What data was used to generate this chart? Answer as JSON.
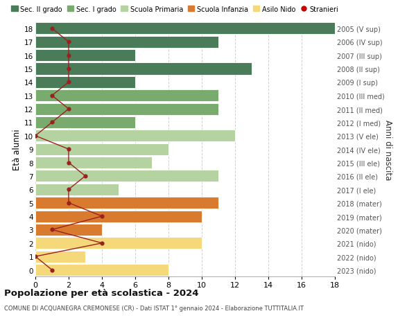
{
  "ages": [
    18,
    17,
    16,
    15,
    14,
    13,
    12,
    11,
    10,
    9,
    8,
    7,
    6,
    5,
    4,
    3,
    2,
    1,
    0
  ],
  "years": [
    "2005 (V sup)",
    "2006 (IV sup)",
    "2007 (III sup)",
    "2008 (II sup)",
    "2009 (I sup)",
    "2010 (III med)",
    "2011 (II med)",
    "2012 (I med)",
    "2013 (V ele)",
    "2014 (IV ele)",
    "2015 (III ele)",
    "2016 (II ele)",
    "2017 (I ele)",
    "2018 (mater)",
    "2019 (mater)",
    "2020 (mater)",
    "2021 (nido)",
    "2022 (nido)",
    "2023 (nido)"
  ],
  "bar_values": [
    18,
    11,
    6,
    13,
    6,
    11,
    11,
    6,
    12,
    8,
    7,
    11,
    5,
    11,
    10,
    4,
    10,
    3,
    8
  ],
  "bar_colors": [
    "#4a7c59",
    "#4a7c59",
    "#4a7c59",
    "#4a7c59",
    "#4a7c59",
    "#7aab6e",
    "#7aab6e",
    "#7aab6e",
    "#b5d3a0",
    "#b5d3a0",
    "#b5d3a0",
    "#b5d3a0",
    "#b5d3a0",
    "#d97b2e",
    "#d97b2e",
    "#d97b2e",
    "#f5d87a",
    "#f5d87a",
    "#f5d87a"
  ],
  "stranieri_values": [
    1,
    2,
    2,
    2,
    2,
    1,
    2,
    1,
    0,
    2,
    2,
    3,
    2,
    2,
    4,
    1,
    4,
    0,
    1
  ],
  "stranieri_color": "#9b2020",
  "legend_items": [
    {
      "label": "Sec. II grado",
      "color": "#4a7c59",
      "type": "patch"
    },
    {
      "label": "Sec. I grado",
      "color": "#7aab6e",
      "type": "patch"
    },
    {
      "label": "Scuola Primaria",
      "color": "#b5d3a0",
      "type": "patch"
    },
    {
      "label": "Scuola Infanzia",
      "color": "#d97b2e",
      "type": "patch"
    },
    {
      "label": "Asilo Nido",
      "color": "#f5d87a",
      "type": "patch"
    },
    {
      "label": "Stranieri",
      "color": "#cc0000",
      "type": "dot"
    }
  ],
  "title": "Popolazione per età scolastica - 2024",
  "subtitle": "COMUNE DI ACQUANEGRA CREMONESE (CR) - Dati ISTAT 1° gennaio 2024 - Elaborazione TUTTITALIA.IT",
  "ylabel_left": "Età alunni",
  "ylabel_right": "Anni di nascita",
  "xlim": [
    0,
    18
  ],
  "ylim": [
    -0.5,
    18.5
  ],
  "bg_color": "#ffffff",
  "grid_color": "#d0d0d0",
  "bar_height": 0.88
}
